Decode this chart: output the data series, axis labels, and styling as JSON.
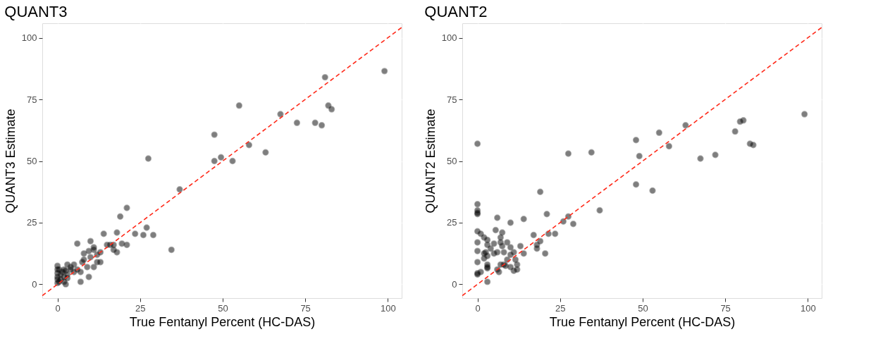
{
  "chart_data": [
    {
      "type": "scatter",
      "title": "QUANT3",
      "xlabel": "True Fentanyl Percent (HC-DAS)",
      "ylabel": "QUANT3 Estimate",
      "xlim": [
        -4.6,
        104.2
      ],
      "ylim": [
        -5.6,
        105.9
      ],
      "xticks": [
        0,
        25,
        50,
        75,
        100
      ],
      "yticks": [
        0,
        25,
        50,
        75,
        100
      ],
      "grid": true,
      "legend": false,
      "series": [
        {
          "color": "#000000",
          "marker": "circle",
          "x": [
            99,
            81,
            82,
            83,
            67.5,
            72.5,
            78,
            80,
            63,
            58,
            55,
            53,
            49.5,
            47.5,
            47.5,
            27.5,
            37,
            34.5,
            29,
            27,
            26,
            23.5,
            21,
            19,
            21,
            19.5,
            18,
            17,
            15,
            14,
            18,
            13,
            12,
            11,
            10,
            9.5,
            10,
            11,
            8,
            7.5,
            9,
            9.5,
            7,
            6,
            6,
            5,
            5,
            4,
            3,
            3,
            2.5,
            2,
            2.5,
            1,
            1,
            0,
            0,
            0,
            0,
            0,
            0,
            0.5,
            2,
            12,
            13,
            16,
            17,
            8,
            11,
            7,
            4,
            3,
            1.5,
            0.5,
            2
          ],
          "values": [
            86.5,
            84,
            72.5,
            71,
            69,
            65.5,
            65.5,
            64.5,
            53.5,
            56.5,
            72.5,
            50,
            51.5,
            60.7,
            50,
            51,
            38.5,
            14,
            20,
            23,
            20,
            20.5,
            31,
            27.5,
            16,
            16.5,
            21,
            16,
            16,
            20.5,
            13,
            9,
            12,
            15,
            17.5,
            13.5,
            11,
            14,
            12.5,
            9,
            7,
            3,
            1,
            6,
            16.5,
            8,
            5,
            6,
            2.5,
            8,
            5.5,
            6,
            0,
            4,
            2,
            0.5,
            2,
            3,
            4.5,
            6,
            7.5,
            1,
            3,
            9,
            13,
            16,
            14,
            10,
            7,
            5,
            7,
            4,
            5,
            6,
            1
          ]
        },
        {
          "type": "line",
          "color": "#ff2a1a",
          "line_style": "dashed",
          "x": [
            -4.6,
            104.2
          ],
          "values": [
            -4.6,
            104.2
          ]
        }
      ]
    },
    {
      "type": "scatter",
      "title": "QUANT2",
      "xlabel": "True Fentanyl Percent (HC-DAS)",
      "ylabel": "QUANT2 Estimate",
      "xlim": [
        -4.6,
        104.2
      ],
      "ylim": [
        -5.6,
        105.9
      ],
      "xticks": [
        0,
        25,
        50,
        75,
        100
      ],
      "yticks": [
        0,
        25,
        50,
        75,
        100
      ],
      "grid": true,
      "legend": false,
      "series": [
        {
          "color": "#000000",
          "marker": "circle",
          "x": [
            99,
            80.5,
            79.5,
            78,
            82.5,
            83.5,
            72,
            67.5,
            63,
            58,
            55,
            53,
            49,
            48,
            48,
            37,
            34.5,
            29,
            27.5,
            27.5,
            26,
            23.5,
            21.5,
            19,
            21,
            20.5,
            18,
            18,
            17,
            19,
            14,
            0,
            0,
            0,
            0,
            0,
            0,
            0,
            0,
            0,
            0,
            0,
            1,
            2,
            3,
            3,
            2.5,
            2,
            3,
            2,
            3,
            3,
            3,
            3,
            1,
            4,
            5,
            5.5,
            6,
            5,
            6,
            6,
            6.5,
            7,
            7,
            7.5,
            7,
            7.5,
            8,
            8,
            8.5,
            9,
            10,
            10,
            10,
            10,
            11,
            11.5,
            12,
            13,
            11,
            9,
            14,
            12
          ],
          "values": [
            69,
            66.5,
            66,
            62,
            57,
            56.5,
            52.5,
            51,
            64.5,
            56,
            61.5,
            38,
            52,
            58.5,
            40.5,
            30,
            53.5,
            24.5,
            53,
            27.5,
            25.5,
            20.5,
            20.5,
            37.5,
            28.5,
            12.5,
            14.5,
            16,
            20,
            17.5,
            26.5,
            57,
            32.5,
            30,
            29,
            28.5,
            21.5,
            17,
            13.5,
            9,
            4.5,
            4,
            20.5,
            19,
            18,
            16,
            13,
            12.5,
            11.5,
            10.5,
            8,
            7,
            6.5,
            1,
            5,
            14.5,
            16.5,
            22,
            27,
            12.5,
            13,
            6,
            5,
            8,
            19,
            21,
            17,
            15.5,
            13,
            8,
            7.5,
            10,
            15,
            12,
            7,
            25,
            13,
            10,
            6,
            15.5,
            5.5,
            17,
            12.5,
            8
          ]
        },
        {
          "type": "line",
          "color": "#ff2a1a",
          "line_style": "dashed",
          "x": [
            -4.6,
            104.2
          ],
          "values": [
            -4.6,
            104.2
          ]
        }
      ]
    }
  ]
}
